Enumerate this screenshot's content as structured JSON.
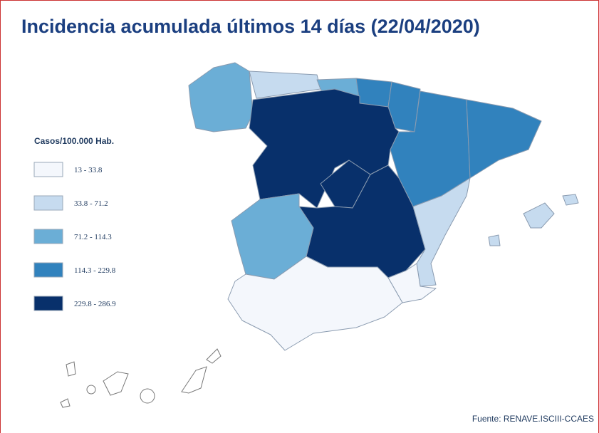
{
  "title": "Incidencia acumulada últimos 14 días (22/04/2020)",
  "legend": {
    "title": "Casos/100.000 Hab.",
    "items": [
      {
        "label": "13 - 33.8",
        "color": "#f4f7fc"
      },
      {
        "label": "33.8 - 71.2",
        "color": "#c6dbef"
      },
      {
        "label": "71.2 - 114.3",
        "color": "#6baed6"
      },
      {
        "label": "114.3 - 229.8",
        "color": "#3182bd"
      },
      {
        "label": "229.8 - 286.9",
        "color": "#08306b"
      }
    ]
  },
  "source": "Fuente: RENAVE.ISCIII-CCAES"
}
